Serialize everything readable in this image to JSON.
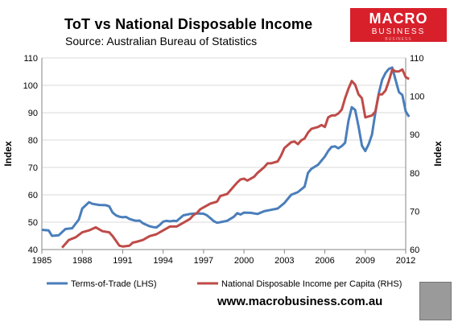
{
  "title": "ToT vs National Disposable  Income",
  "subtitle": "Source: Australian Bureau of Statistics",
  "logo": {
    "line1": "MACRO",
    "line2": "BUSINESS",
    "line3": "BUSINESS"
  },
  "footer_url": "www.macrobusiness.com.au",
  "chart_data": {
    "type": "line",
    "title": "ToT vs National Disposable  Income",
    "xlabel": "",
    "ylabel_left": "Index",
    "ylabel_right": "Index",
    "x_range": [
      1985,
      2012
    ],
    "x_ticks": [
      "1985",
      "1988",
      "1991",
      "1994",
      "1997",
      "2000",
      "2003",
      "2006",
      "2009",
      "2012"
    ],
    "y_left": {
      "range": [
        40,
        110
      ],
      "ticks": [
        "40",
        "50",
        "60",
        "70",
        "80",
        "90",
        "100",
        "110"
      ]
    },
    "y_right": {
      "range": [
        60,
        110
      ],
      "ticks": [
        "60",
        "70",
        "80",
        "90",
        "100",
        "110"
      ]
    },
    "grid": "horizontal",
    "legend_position": "bottom",
    "series": [
      {
        "name": "Terms-of-Trade (LHS)",
        "axis": "left",
        "color": "#4a7ebb",
        "points": [
          [
            1985.0,
            47.2
          ],
          [
            1985.5,
            47.0
          ],
          [
            1985.75,
            45.0
          ],
          [
            1986.25,
            45.2
          ],
          [
            1986.75,
            47.5
          ],
          [
            1987.25,
            47.8
          ],
          [
            1987.75,
            51.0
          ],
          [
            1988.0,
            55.0
          ],
          [
            1988.5,
            57.3
          ],
          [
            1988.75,
            56.7
          ],
          [
            1989.25,
            56.3
          ],
          [
            1989.75,
            56.2
          ],
          [
            1990.0,
            55.8
          ],
          [
            1990.25,
            53.5
          ],
          [
            1990.5,
            52.5
          ],
          [
            1990.75,
            52.0
          ],
          [
            1991.0,
            51.8
          ],
          [
            1991.25,
            51.9
          ],
          [
            1991.5,
            51.2
          ],
          [
            1991.75,
            50.8
          ],
          [
            1992.0,
            50.5
          ],
          [
            1992.25,
            50.6
          ],
          [
            1992.5,
            49.6
          ],
          [
            1993.0,
            48.5
          ],
          [
            1993.25,
            48.2
          ],
          [
            1993.5,
            48.1
          ],
          [
            1993.75,
            49.0
          ],
          [
            1994.0,
            50.2
          ],
          [
            1994.25,
            50.5
          ],
          [
            1994.5,
            50.3
          ],
          [
            1994.75,
            50.5
          ],
          [
            1995.0,
            50.4
          ],
          [
            1995.5,
            52.5
          ],
          [
            1996.0,
            53.0
          ],
          [
            1996.5,
            53.2
          ],
          [
            1997.0,
            53.1
          ],
          [
            1997.25,
            52.5
          ],
          [
            1997.5,
            51.5
          ],
          [
            1997.75,
            50.4
          ],
          [
            1998.0,
            49.8
          ],
          [
            1998.25,
            50.0
          ],
          [
            1998.75,
            50.5
          ],
          [
            1999.25,
            52.0
          ],
          [
            1999.5,
            53.3
          ],
          [
            1999.75,
            52.8
          ],
          [
            2000.0,
            53.5
          ],
          [
            2000.5,
            53.4
          ],
          [
            2001.0,
            53.0
          ],
          [
            2001.5,
            54.0
          ],
          [
            2002.0,
            54.5
          ],
          [
            2002.5,
            55.0
          ],
          [
            2003.0,
            57.0
          ],
          [
            2003.5,
            60.0
          ],
          [
            2004.0,
            61.0
          ],
          [
            2004.5,
            63.0
          ],
          [
            2004.75,
            68.0
          ],
          [
            2005.0,
            69.5
          ],
          [
            2005.5,
            71.0
          ],
          [
            2006.0,
            74.0
          ],
          [
            2006.25,
            76.0
          ],
          [
            2006.5,
            77.5
          ],
          [
            2006.75,
            77.7
          ],
          [
            2007.0,
            77.0
          ],
          [
            2007.25,
            77.8
          ],
          [
            2007.5,
            79.0
          ],
          [
            2007.75,
            87.0
          ],
          [
            2008.0,
            92.0
          ],
          [
            2008.25,
            91.0
          ],
          [
            2008.5,
            85.0
          ],
          [
            2008.75,
            78.0
          ],
          [
            2009.0,
            76.0
          ],
          [
            2009.25,
            78.5
          ],
          [
            2009.5,
            82.0
          ],
          [
            2009.75,
            90.0
          ],
          [
            2010.0,
            97.0
          ],
          [
            2010.25,
            102.0
          ],
          [
            2010.5,
            104.5
          ],
          [
            2010.75,
            106.0
          ],
          [
            2011.0,
            106.5
          ],
          [
            2011.25,
            102.0
          ],
          [
            2011.5,
            97.5
          ],
          [
            2011.75,
            96.5
          ],
          [
            2012.0,
            90.5
          ],
          [
            2012.25,
            88.5
          ]
        ]
      },
      {
        "name": "National Disposable Income per Capita (RHS)",
        "axis": "right",
        "color": "#be4b48",
        "points": [
          [
            1986.5,
            60.5
          ],
          [
            1987.0,
            62.5
          ],
          [
            1987.5,
            63.2
          ],
          [
            1988.0,
            64.5
          ],
          [
            1988.5,
            65.0
          ],
          [
            1989.0,
            65.8
          ],
          [
            1989.5,
            64.8
          ],
          [
            1990.0,
            64.5
          ],
          [
            1990.25,
            63.5
          ],
          [
            1990.5,
            62.3
          ],
          [
            1990.75,
            61.0
          ],
          [
            1991.0,
            60.8
          ],
          [
            1991.5,
            61.0
          ],
          [
            1991.75,
            61.8
          ],
          [
            1992.0,
            62.0
          ],
          [
            1992.5,
            62.5
          ],
          [
            1993.0,
            63.5
          ],
          [
            1993.5,
            64.0
          ],
          [
            1994.0,
            65.0
          ],
          [
            1994.5,
            66.0
          ],
          [
            1995.0,
            66.0
          ],
          [
            1995.5,
            67.0
          ],
          [
            1996.0,
            68.0
          ],
          [
            1996.25,
            69.0
          ],
          [
            1996.5,
            69.5
          ],
          [
            1996.75,
            70.5
          ],
          [
            1997.0,
            71.0
          ],
          [
            1997.5,
            72.0
          ],
          [
            1998.0,
            72.5
          ],
          [
            1998.25,
            74.0
          ],
          [
            1998.75,
            74.5
          ],
          [
            1999.0,
            75.5
          ],
          [
            1999.5,
            77.5
          ],
          [
            1999.75,
            78.3
          ],
          [
            2000.0,
            78.5
          ],
          [
            2000.25,
            78.0
          ],
          [
            2000.75,
            79.0
          ],
          [
            2001.0,
            80.0
          ],
          [
            2001.5,
            81.5
          ],
          [
            2001.75,
            82.5
          ],
          [
            2002.0,
            82.5
          ],
          [
            2002.5,
            83.0
          ],
          [
            2002.75,
            84.5
          ],
          [
            2003.0,
            86.5
          ],
          [
            2003.5,
            88.0
          ],
          [
            2003.75,
            88.2
          ],
          [
            2004.0,
            87.5
          ],
          [
            2004.25,
            88.5
          ],
          [
            2004.5,
            89.0
          ],
          [
            2004.75,
            90.5
          ],
          [
            2005.0,
            91.5
          ],
          [
            2005.5,
            92.0
          ],
          [
            2005.75,
            92.5
          ],
          [
            2006.0,
            92.0
          ],
          [
            2006.25,
            94.5
          ],
          [
            2006.5,
            95.0
          ],
          [
            2006.75,
            95.0
          ],
          [
            2007.0,
            95.5
          ],
          [
            2007.25,
            96.5
          ],
          [
            2007.5,
            99.5
          ],
          [
            2007.75,
            102.0
          ],
          [
            2008.0,
            104.0
          ],
          [
            2008.25,
            103.0
          ],
          [
            2008.5,
            100.5
          ],
          [
            2008.75,
            99.5
          ],
          [
            2009.0,
            94.5
          ],
          [
            2009.5,
            95.0
          ],
          [
            2009.75,
            96.0
          ],
          [
            2010.0,
            100.5
          ],
          [
            2010.25,
            100.5
          ],
          [
            2010.5,
            101.5
          ],
          [
            2010.75,
            104.0
          ],
          [
            2011.0,
            107.0
          ],
          [
            2011.25,
            106.5
          ],
          [
            2011.5,
            106.5
          ],
          [
            2011.75,
            107.0
          ],
          [
            2012.0,
            105.0
          ],
          [
            2012.25,
            104.5
          ]
        ]
      }
    ]
  }
}
